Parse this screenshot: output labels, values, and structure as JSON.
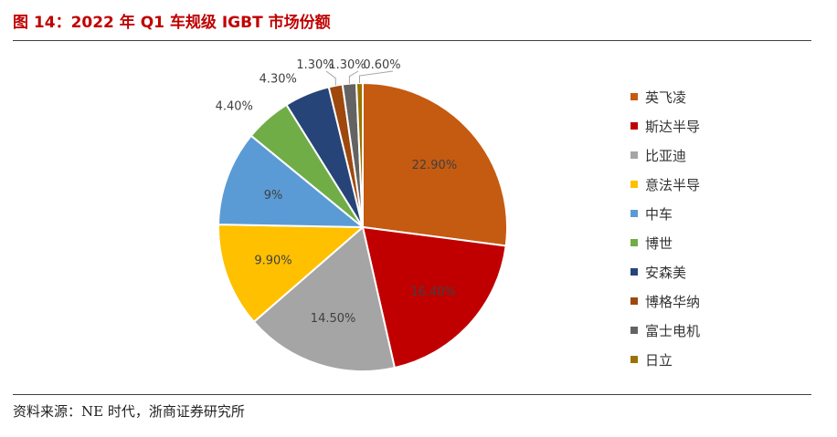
{
  "header": {
    "title": "图 14：2022 年 Q1 车规级 IGBT 市场份额"
  },
  "footer": {
    "source": "资料来源：NE 时代，浙商证券研究所"
  },
  "chart_data": {
    "type": "pie",
    "title": "",
    "start_angle_deg": 0,
    "direction": "clockwise",
    "legend_position": "right",
    "series": [
      {
        "name": "英飞凌",
        "value": 22.9,
        "label": "22.90%",
        "color": "#C55A11",
        "label_color": "#404040"
      },
      {
        "name": "斯达半导",
        "value": 16.4,
        "label": "16.40%",
        "color": "#C00000",
        "label_color": "#404040"
      },
      {
        "name": "比亚迪",
        "value": 14.5,
        "label": "14.50%",
        "color": "#A5A5A5",
        "label_color": "#404040"
      },
      {
        "name": "意法半导",
        "value": 9.9,
        "label": "9.90%",
        "color": "#FFC000",
        "label_color": "#404040"
      },
      {
        "name": "中车",
        "value": 9,
        "label": "9%",
        "color": "#5B9BD5",
        "label_color": "#404040"
      },
      {
        "name": "博世",
        "value": 4.4,
        "label": "4.40%",
        "color": "#70AD47",
        "label_color": "#404040"
      },
      {
        "name": "安森美",
        "value": 4.3,
        "label": "4.30%",
        "color": "#264478",
        "label_color": "#404040"
      },
      {
        "name": "博格华纳",
        "value": 1.3,
        "label": "1.30%",
        "color": "#9E480E",
        "label_color": "#404040"
      },
      {
        "name": "富士电机",
        "value": 1.3,
        "label": "1.30%",
        "color": "#636363",
        "label_color": "#404040"
      },
      {
        "name": "日立",
        "value": 0.6,
        "label": "0.60%",
        "color": "#997300",
        "label_color": "#404040"
      }
    ]
  }
}
